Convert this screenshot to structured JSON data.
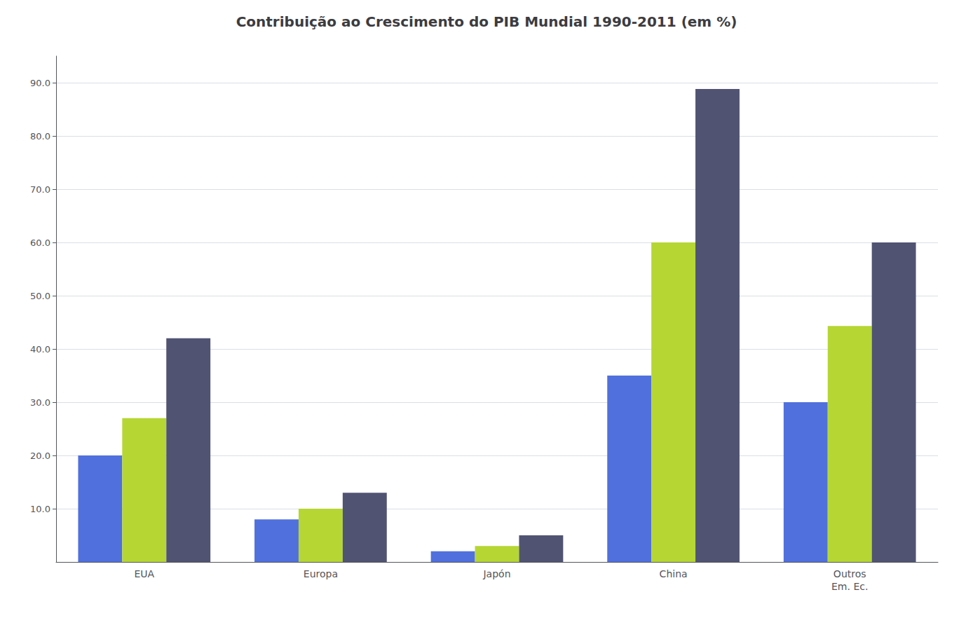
{
  "chart_data": {
    "type": "bar",
    "title": "Contribuição ao Crescimento do PIB Mundial 1990-2011 (em %)",
    "categories": [
      "EUA",
      "Europa",
      "Japón",
      "China",
      "Outros\nEm. Ec."
    ],
    "series": [
      {
        "values": [
          20.0,
          8.0,
          2.0,
          35.0,
          30.0
        ]
      },
      {
        "values": [
          27.0,
          10.0,
          3.0,
          60.0,
          44.3
        ]
      },
      {
        "values": [
          42.0,
          13.0,
          5.0,
          88.8,
          60.0
        ]
      }
    ],
    "ylim": [
      0,
      95
    ],
    "yticks": [
      {
        "value": 10,
        "label": "10.0"
      },
      {
        "value": 20,
        "label": "20.0"
      },
      {
        "value": 30,
        "label": "30.0"
      },
      {
        "value": 40,
        "label": "40.0"
      },
      {
        "value": 50,
        "label": "50.0"
      },
      {
        "value": 60,
        "label": "60.0"
      },
      {
        "value": 70,
        "label": "70.0"
      },
      {
        "value": 80,
        "label": "80.0"
      },
      {
        "value": 90,
        "label": "90.0"
      }
    ],
    "grid": true
  }
}
